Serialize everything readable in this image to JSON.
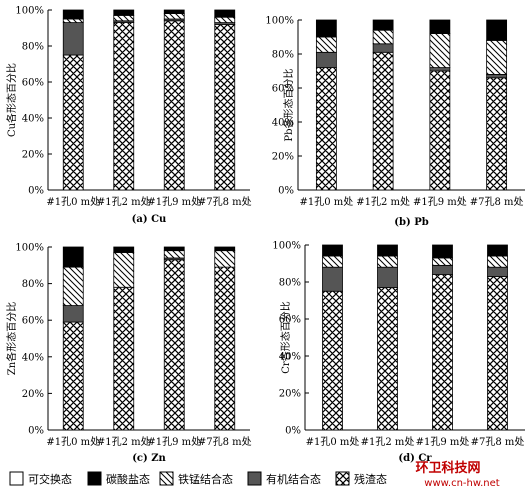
{
  "legend": [
    {
      "key": "exchangeable",
      "label": "可交换态"
    },
    {
      "key": "carbonate",
      "label": "碳酸盐态"
    },
    {
      "key": "femn",
      "label": "铁锰结合态"
    },
    {
      "key": "organic",
      "label": "有机结合态"
    },
    {
      "key": "residual",
      "label": "残渣态"
    }
  ],
  "watermark": {
    "line1": "环卫科技网",
    "line2": "www.cn-hw.net"
  },
  "chart_data": [
    {
      "type": "bar",
      "stacked": true,
      "caption": "(a) Cu",
      "ylabel": "Cu各形态百分比",
      "yticks": [
        "0%",
        "20%",
        "40%",
        "60%",
        "80%",
        "100%"
      ],
      "ylim": [
        0,
        100
      ],
      "categories": [
        "#1孔0 m处",
        "#1孔2 m处",
        "#1孔9 m处",
        "#7孔8 m处"
      ],
      "series": [
        {
          "name": "残渣态",
          "values": [
            75,
            93,
            94,
            92
          ]
        },
        {
          "name": "有机结合态",
          "values": [
            18,
            1,
            1,
            1
          ]
        },
        {
          "name": "铁锰结合态",
          "values": [
            2,
            3,
            3,
            3
          ]
        },
        {
          "name": "碳酸盐态",
          "values": [
            5,
            3,
            2,
            4
          ]
        },
        {
          "name": "可交换态",
          "values": [
            0,
            0,
            0,
            0
          ]
        }
      ]
    },
    {
      "type": "bar",
      "stacked": true,
      "caption": "(b) Pb",
      "ylabel": "Pb各形态百分比",
      "yticks": [
        "0%",
        "20%",
        "40%",
        "60%",
        "80%",
        "100%"
      ],
      "ylim": [
        0,
        100
      ],
      "categories": [
        "#1孔0 m处",
        "#1孔2 m处",
        "#1孔9 m处",
        "#7孔8 m处"
      ],
      "series": [
        {
          "name": "残渣态",
          "values": [
            72,
            81,
            70,
            66
          ]
        },
        {
          "name": "有机结合态",
          "values": [
            9,
            5,
            2,
            2
          ]
        },
        {
          "name": "铁锰结合态",
          "values": [
            9,
            8,
            20,
            20
          ]
        },
        {
          "name": "碳酸盐态",
          "values": [
            10,
            6,
            8,
            12
          ]
        },
        {
          "name": "可交换态",
          "values": [
            0,
            0,
            0,
            0
          ]
        }
      ]
    },
    {
      "type": "bar",
      "stacked": true,
      "caption": "(c) Zn",
      "ylabel": "Zn各形态百分比",
      "yticks": [
        "0%",
        "20%",
        "40%",
        "60%",
        "80%",
        "100%"
      ],
      "ylim": [
        0,
        100
      ],
      "categories": [
        "#1孔0 m处",
        "#1孔2 m处",
        "#1孔9 m处",
        "#7孔8 m处"
      ],
      "series": [
        {
          "name": "残渣态",
          "values": [
            59,
            78,
            93,
            89
          ]
        },
        {
          "name": "有机结合态",
          "values": [
            9,
            0,
            1,
            0
          ]
        },
        {
          "name": "铁锰结合态",
          "values": [
            21,
            19,
            4,
            9
          ]
        },
        {
          "name": "碳酸盐态",
          "values": [
            11,
            3,
            2,
            2
          ]
        },
        {
          "name": "可交换态",
          "values": [
            0,
            0,
            0,
            0
          ]
        }
      ]
    },
    {
      "type": "bar",
      "stacked": true,
      "caption": "(d) Cr",
      "ylabel": "Cr各形态百分比",
      "yticks": [
        "0%",
        "20%",
        "40%",
        "60%",
        "80%",
        "100%"
      ],
      "ylim": [
        0,
        100
      ],
      "categories": [
        "#1孔0 m处",
        "#1孔2 m处",
        "#1孔9 m处",
        "#7孔8 m处"
      ],
      "series": [
        {
          "name": "残渣态",
          "values": [
            75,
            77,
            84,
            83
          ]
        },
        {
          "name": "有机结合态",
          "values": [
            13,
            11,
            5,
            5
          ]
        },
        {
          "name": "铁锰结合态",
          "values": [
            6,
            6,
            4,
            6
          ]
        },
        {
          "name": "碳酸盐态",
          "values": [
            6,
            6,
            7,
            6
          ]
        },
        {
          "name": "可交换态",
          "values": [
            0,
            0,
            0,
            0
          ]
        }
      ]
    }
  ]
}
